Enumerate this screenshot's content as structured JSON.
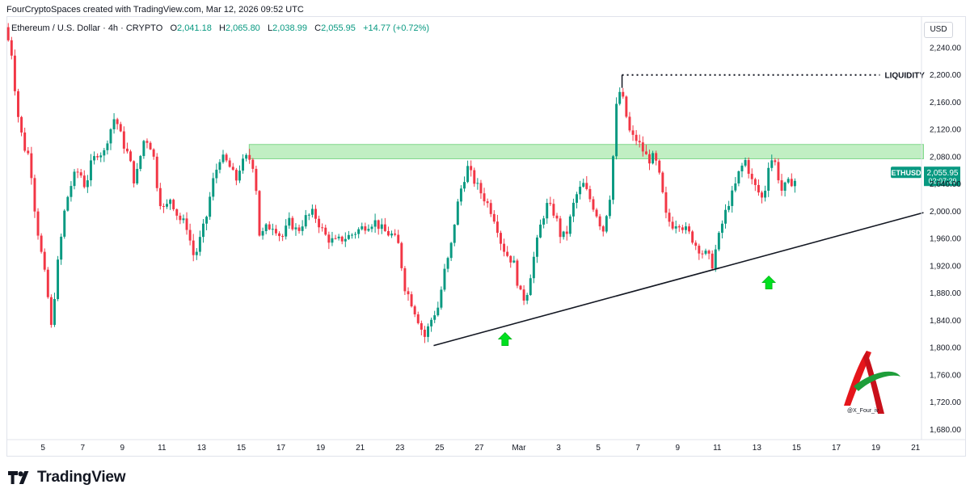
{
  "header": {
    "attribution": "FourCryptoSpaces created with TradingView.com, Mar 12, 2026 09:52 UTC"
  },
  "legend": {
    "symbol": "Ethereum / U.S. Dollar · 4h · CRYPTO",
    "o_label": "O",
    "o_value": "2,041.18",
    "h_label": "H",
    "h_value": "2,065.80",
    "l_label": "L",
    "l_value": "2,038.99",
    "c_label": "C",
    "c_value": "2,055.95",
    "change": "+14.77 (+0.72%)"
  },
  "currency_button": "USD",
  "brand": {
    "name": "TradingView"
  },
  "watermark": {
    "handle": "@X_Four_iv"
  },
  "chart_data": {
    "type": "candlestick",
    "y_axis": {
      "ticks": [
        1680,
        1720,
        1760,
        1800,
        1840,
        1880,
        1920,
        1960,
        2000,
        2040,
        2080,
        2120,
        2160,
        2200,
        2240
      ],
      "tick_labels": [
        "1,680.00",
        "1,720.00",
        "1,760.00",
        "1,800.00",
        "1,840.00",
        "1,880.00",
        "1,920.00",
        "1,960.00",
        "2,000.00",
        "2,040.00",
        "2,080.00",
        "2,120.00",
        "2,160.00",
        "2,200.00",
        "2,240.00"
      ],
      "range": [
        1665,
        2285
      ]
    },
    "x_axis": {
      "labels": [
        {
          "label": "5",
          "day": 0
        },
        {
          "label": "7",
          "day": 2
        },
        {
          "label": "9",
          "day": 4
        },
        {
          "label": "11",
          "day": 6
        },
        {
          "label": "13",
          "day": 8
        },
        {
          "label": "15",
          "day": 10
        },
        {
          "label": "17",
          "day": 12
        },
        {
          "label": "19",
          "day": 14
        },
        {
          "label": "21",
          "day": 16
        },
        {
          "label": "23",
          "day": 18
        },
        {
          "label": "25",
          "day": 20
        },
        {
          "label": "27",
          "day": 22
        },
        {
          "label": "Mar",
          "day": 24
        },
        {
          "label": "3",
          "day": 26
        },
        {
          "label": "5",
          "day": 28
        },
        {
          "label": "7",
          "day": 30
        },
        {
          "label": "9",
          "day": 32
        },
        {
          "label": "11",
          "day": 34
        },
        {
          "label": "13",
          "day": 36
        },
        {
          "label": "15",
          "day": 38
        },
        {
          "label": "17",
          "day": 40
        },
        {
          "label": "19",
          "day": 42
        },
        {
          "label": "21",
          "day": 44
        }
      ],
      "range_days": [
        -1.8,
        44.3
      ]
    },
    "path_points": [
      [
        -1.75,
        2270
      ],
      [
        -1.4,
        2230
      ],
      [
        -1.15,
        2150
      ],
      [
        -0.8,
        2095
      ],
      [
        -0.5,
        2080
      ],
      [
        -0.2,
        1990
      ],
      [
        0.4,
        1880
      ],
      [
        0.55,
        1820
      ],
      [
        0.9,
        1920
      ],
      [
        1.3,
        2010
      ],
      [
        1.7,
        2050
      ],
      [
        2.0,
        2060
      ],
      [
        2.3,
        2035
      ],
      [
        2.6,
        2070
      ],
      [
        3.0,
        2090
      ],
      [
        3.2,
        2080
      ],
      [
        3.4,
        2105
      ],
      [
        3.8,
        2140
      ],
      [
        4.2,
        2100
      ],
      [
        4.5,
        2080
      ],
      [
        4.8,
        2040
      ],
      [
        5.0,
        2070
      ],
      [
        5.3,
        2110
      ],
      [
        5.7,
        2090
      ],
      [
        6.0,
        2020
      ],
      [
        6.3,
        2000
      ],
      [
        6.6,
        2020
      ],
      [
        7.0,
        1990
      ],
      [
        7.4,
        1980
      ],
      [
        7.8,
        1930
      ],
      [
        8.1,
        1960
      ],
      [
        8.4,
        1990
      ],
      [
        8.7,
        2040
      ],
      [
        9.1,
        2080
      ],
      [
        9.5,
        2070
      ],
      [
        9.9,
        2045
      ],
      [
        10.1,
        2065
      ],
      [
        10.4,
        2078
      ],
      [
        10.7,
        2076
      ],
      [
        10.8,
        2060
      ],
      [
        10.9,
        2040
      ],
      [
        11.1,
        1960
      ],
      [
        11.4,
        1975
      ],
      [
        11.8,
        1980
      ],
      [
        12.2,
        1960
      ],
      [
        12.6,
        1985
      ],
      [
        13.0,
        1970
      ],
      [
        13.4,
        1990
      ],
      [
        13.8,
        1998
      ],
      [
        14.2,
        1975
      ],
      [
        14.5,
        1960
      ],
      [
        14.9,
        1955
      ],
      [
        15.3,
        1960
      ],
      [
        15.7,
        1965
      ],
      [
        16.1,
        1973
      ],
      [
        16.5,
        1980
      ],
      [
        16.9,
        1985
      ],
      [
        17.2,
        1975
      ],
      [
        17.5,
        1968
      ],
      [
        17.8,
        1965
      ],
      [
        18.1,
        1950
      ],
      [
        18.4,
        1890
      ],
      [
        18.7,
        1870
      ],
      [
        19.1,
        1840
      ],
      [
        19.4,
        1815
      ],
      [
        19.6,
        1830
      ],
      [
        19.8,
        1845
      ],
      [
        20.1,
        1860
      ],
      [
        20.4,
        1910
      ],
      [
        20.7,
        1940
      ],
      [
        21.0,
        2000
      ],
      [
        21.3,
        2040
      ],
      [
        21.6,
        2065
      ],
      [
        21.8,
        2050
      ],
      [
        22.1,
        2035
      ],
      [
        22.4,
        2020
      ],
      [
        22.7,
        2005
      ],
      [
        23.0,
        1985
      ],
      [
        23.3,
        1950
      ],
      [
        23.6,
        1935
      ],
      [
        23.9,
        1925
      ],
      [
        24.2,
        1880
      ],
      [
        24.5,
        1870
      ],
      [
        24.9,
        1930
      ],
      [
        25.3,
        1985
      ],
      [
        25.6,
        2010
      ],
      [
        26.0,
        1995
      ],
      [
        26.3,
        1960
      ],
      [
        26.6,
        1970
      ],
      [
        27.0,
        2020
      ],
      [
        27.4,
        2040
      ],
      [
        27.8,
        2015
      ],
      [
        28.1,
        1995
      ],
      [
        28.4,
        1970
      ],
      [
        28.8,
        2030
      ],
      [
        29.1,
        2160
      ],
      [
        29.3,
        2180
      ],
      [
        29.5,
        2150
      ],
      [
        29.8,
        2110
      ],
      [
        30.1,
        2105
      ],
      [
        30.4,
        2090
      ],
      [
        30.7,
        2075
      ],
      [
        31.0,
        2080
      ],
      [
        31.3,
        2045
      ],
      [
        31.6,
        1990
      ],
      [
        31.9,
        1980
      ],
      [
        32.2,
        1985
      ],
      [
        32.5,
        1975
      ],
      [
        32.8,
        1965
      ],
      [
        33.1,
        1950
      ],
      [
        33.4,
        1940
      ],
      [
        33.7,
        1935
      ],
      [
        33.9,
        1920
      ],
      [
        34.1,
        1945
      ],
      [
        34.4,
        1980
      ],
      [
        34.7,
        2010
      ],
      [
        35.0,
        2030
      ],
      [
        35.3,
        2060
      ],
      [
        35.6,
        2075
      ],
      [
        35.9,
        2045
      ],
      [
        36.2,
        2030
      ],
      [
        36.5,
        2015
      ],
      [
        36.8,
        2080
      ],
      [
        37.1,
        2070
      ],
      [
        37.4,
        2030
      ],
      [
        37.7,
        2040
      ],
      [
        38.0,
        2045
      ]
    ],
    "green_zone": {
      "y_from": 2077,
      "y_to": 2098,
      "day_from": 10.4,
      "day_to": 44.4
    },
    "liquidity_line": {
      "y": 2200,
      "day_from": 29.2,
      "day_to": 42.2,
      "label": "LIQUIDITY"
    },
    "trendline": {
      "from": [
        19.7,
        1803
      ],
      "to": [
        44.4,
        1998
      ]
    },
    "arrows": [
      {
        "day": 23.3,
        "y": 1822
      },
      {
        "day": 36.6,
        "y": 1905
      }
    ],
    "price_tag": {
      "symbol": "ETHUSD",
      "price": "2,055.95",
      "countdown": "02:07:29",
      "y": 2055.95
    },
    "colors": {
      "up": "#089981",
      "down": "#f23645",
      "zone": "#b6ecb8",
      "zone_border": "#7fd68a",
      "arrow": "#00e020"
    }
  }
}
